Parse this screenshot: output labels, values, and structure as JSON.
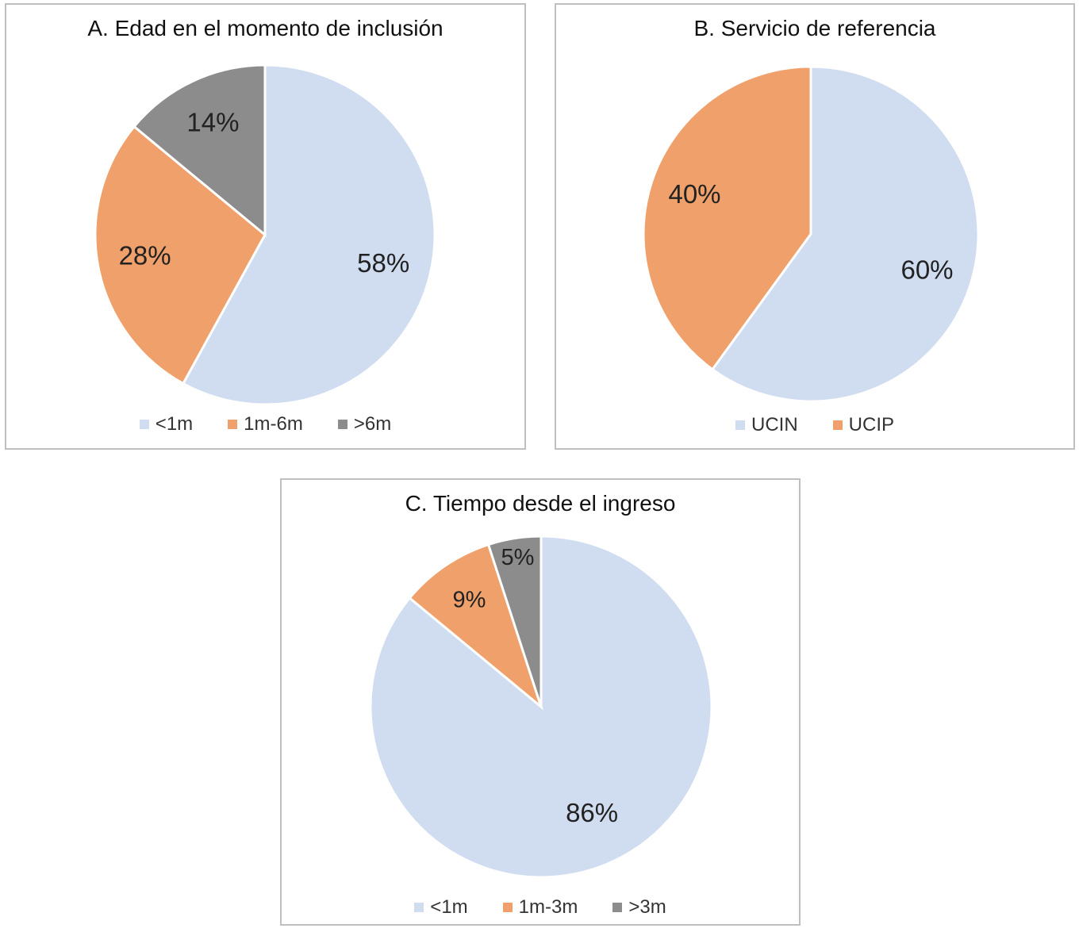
{
  "colors": {
    "light_blue": "#d0dcf0",
    "orange": "#f0a06a",
    "gray": "#8c8c8c"
  },
  "chart_data": [
    {
      "type": "pie",
      "title": "A. Edad en el momento de inclusión",
      "legend_position": "bottom",
      "slices": [
        {
          "label": "<1m",
          "value": 58,
          "value_label": "58%",
          "color": "#d0dcf0"
        },
        {
          "label": "1m-6m",
          "value": 28,
          "value_label": "28%",
          "color": "#f0a06a"
        },
        {
          "label": ">6m",
          "value": 14,
          "value_label": "14%",
          "color": "#8c8c8c"
        }
      ]
    },
    {
      "type": "pie",
      "title": "B. Servicio de referencia",
      "legend_position": "bottom",
      "slices": [
        {
          "label": "UCIN",
          "value": 60,
          "value_label": "60%",
          "color": "#d0dcf0"
        },
        {
          "label": "UCIP",
          "value": 40,
          "value_label": "40%",
          "color": "#f0a06a"
        }
      ]
    },
    {
      "type": "pie",
      "title": "C. Tiempo desde el ingreso",
      "legend_position": "bottom",
      "slices": [
        {
          "label": "<1m",
          "value": 86,
          "value_label": "86%",
          "color": "#d0dcf0"
        },
        {
          "label": "1m-3m",
          "value": 9,
          "value_label": "9%",
          "color": "#f0a06a"
        },
        {
          "label": ">3m",
          "value": 5,
          "value_label": "5%",
          "color": "#8c8c8c"
        }
      ]
    }
  ]
}
